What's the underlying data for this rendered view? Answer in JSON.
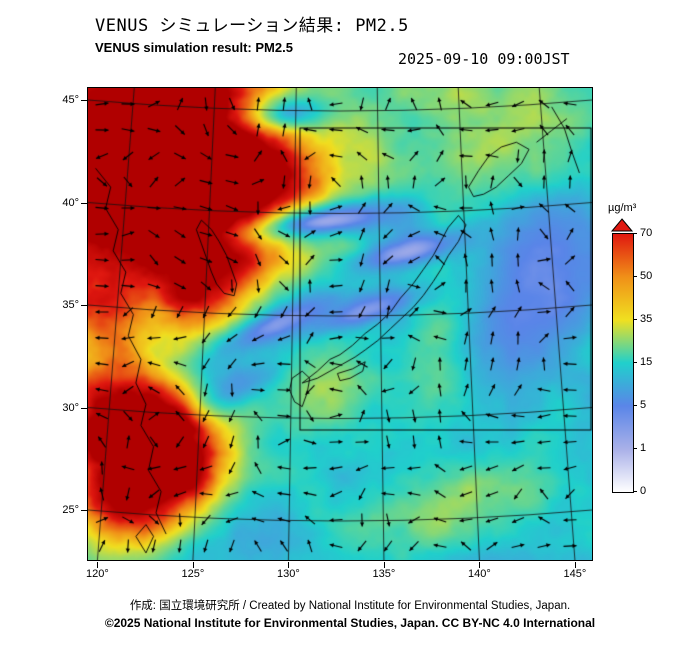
{
  "header": {
    "title_jp": "VENUS シミュレーション結果: PM2.5",
    "title_en": "VENUS simulation result: PM2.5",
    "datetime": "2025-09-10 09:00JST"
  },
  "chart_data": {
    "type": "heatmap",
    "title": "VENUS simulation result: PM2.5",
    "title_jp": "VENUS シミュレーション結果: PM2.5",
    "timestamp": "2025-09-10 09:00JST",
    "variable": "PM2.5 surface concentration",
    "units": "µg/m³",
    "overlay": "wind vector arrows (black)",
    "x_axis": {
      "name": "longitude",
      "tick_values": [
        120,
        125,
        130,
        135,
        140,
        145
      ],
      "degree_symbol": "°",
      "range": [
        119.3,
        146.2
      ]
    },
    "y_axis": {
      "name": "latitude",
      "tick_values": [
        45,
        40,
        35,
        30,
        25
      ],
      "degree_symbol": "°",
      "range": [
        23.1,
        46.1
      ]
    },
    "colorbar": {
      "label": "µg/m³",
      "levels": [
        0,
        1,
        5,
        15,
        35,
        50,
        70
      ],
      "colors": [
        "#ffffff",
        "#a9b0e8",
        "#5a85e8",
        "#20d0cc",
        "#f0e020",
        "#f09018",
        "#e01810"
      ],
      "over_color": "#b00000"
    },
    "features": [
      {
        "region": "Northeast China (~120-128E, 38-45N)",
        "value": "50-70+ µg/m³ (red/orange plume)"
      },
      {
        "region": "East China coast (~120-123E, 27-30N)",
        "value": "70+ µg/m³ (red plume)"
      },
      {
        "region": "Korean peninsula vicinity",
        "value": "15-50 µg/m³ (green/yellow patches)"
      },
      {
        "region": "Sea of Japan",
        "value": "0-1 µg/m³ (white streaks)"
      },
      {
        "region": "Pacific east of Japan",
        "value": "1-5 µg/m³ (lavender/blue)"
      },
      {
        "region": "background ocean and Japan",
        "value": "5-20 µg/m³ (cyan/green)"
      }
    ]
  },
  "footer": {
    "credit": "作成: 国立環境研究所 / Created by National Institute for Environmental Studies, Japan.",
    "license": "©2025 National Institute for Environmental Studies, Japan. CC BY-NC 4.0 International"
  }
}
